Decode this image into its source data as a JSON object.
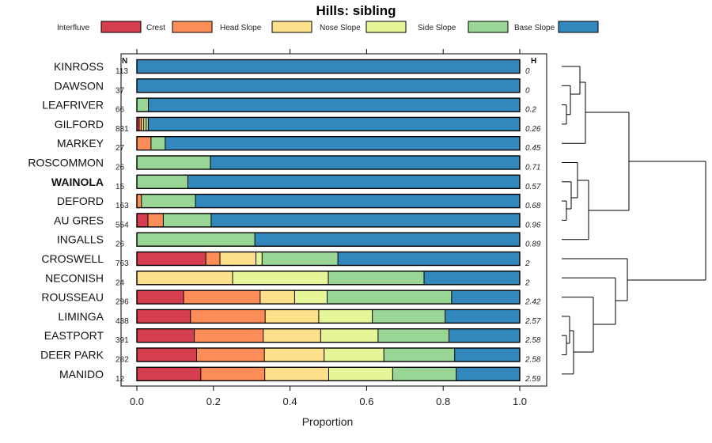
{
  "chart_data": {
    "type": "stacked-horizontal-bar",
    "title": "Hills: sibling",
    "xlabel": "Proportion",
    "xlim": [
      0,
      1
    ],
    "xticks": [
      "0.0",
      "0.2",
      "0.4",
      "0.6",
      "0.8",
      "1.0"
    ],
    "n_header": "N",
    "h_header": "H",
    "legend": [
      {
        "name": "Interfluve",
        "color": "#D53E4F"
      },
      {
        "name": "Crest",
        "color": "#FC8D59"
      },
      {
        "name": "Head Slope",
        "color": "#FEE08B"
      },
      {
        "name": "Nose Slope",
        "color": "#E6F598"
      },
      {
        "name": "Side Slope",
        "color": "#99D594"
      },
      {
        "name": "Base Slope",
        "color": "#3288BD"
      }
    ],
    "rows": [
      {
        "label": "KINROSS",
        "n": "113",
        "h": "0",
        "bold": false,
        "values": [
          0,
          0,
          0,
          0,
          0,
          1.0
        ]
      },
      {
        "label": "DAWSON",
        "n": "37",
        "h": "0",
        "bold": false,
        "values": [
          0,
          0,
          0,
          0,
          0,
          1.0
        ]
      },
      {
        "label": "LEAFRIVER",
        "n": "66",
        "h": "0.2",
        "bold": false,
        "values": [
          0,
          0,
          0,
          0,
          0.03,
          0.97
        ]
      },
      {
        "label": "GILFORD",
        "n": "831",
        "h": "0.26",
        "bold": false,
        "values": [
          0.006,
          0.006,
          0.006,
          0.006,
          0.006,
          0.97
        ]
      },
      {
        "label": "MARKEY",
        "n": "27",
        "h": "0.45",
        "bold": false,
        "values": [
          0,
          0.037,
          0,
          0,
          0.037,
          0.926
        ]
      },
      {
        "label": "ROSCOMMON",
        "n": "26",
        "h": "0.71",
        "bold": false,
        "values": [
          0,
          0,
          0,
          0,
          0.192,
          0.808
        ]
      },
      {
        "label": "WAINOLA",
        "n": "15",
        "h": "0.57",
        "bold": true,
        "values": [
          0,
          0,
          0,
          0,
          0.133,
          0.867
        ]
      },
      {
        "label": "DEFORD",
        "n": "163",
        "h": "0.68",
        "bold": false,
        "values": [
          0,
          0.012,
          0,
          0,
          0.141,
          0.847
        ]
      },
      {
        "label": "AU GRES",
        "n": "554",
        "h": "0.96",
        "bold": false,
        "values": [
          0.029,
          0.04,
          0,
          0,
          0.125,
          0.806
        ]
      },
      {
        "label": "INGALLS",
        "n": "26",
        "h": "0.89",
        "bold": false,
        "values": [
          0,
          0,
          0,
          0,
          0.308,
          0.692
        ]
      },
      {
        "label": "CROSWELL",
        "n": "763",
        "h": "2",
        "bold": false,
        "values": [
          0.18,
          0.037,
          0.094,
          0.016,
          0.198,
          0.475
        ]
      },
      {
        "label": "NECONISH",
        "n": "24",
        "h": "2",
        "bold": false,
        "values": [
          0,
          0,
          0.25,
          0.25,
          0.25,
          0.25
        ]
      },
      {
        "label": "ROUSSEAU",
        "n": "296",
        "h": "2.42",
        "bold": false,
        "values": [
          0.122,
          0.2,
          0.09,
          0.085,
          0.325,
          0.178
        ]
      },
      {
        "label": "LIMINGA",
        "n": "438",
        "h": "2.57",
        "bold": false,
        "values": [
          0.14,
          0.195,
          0.14,
          0.14,
          0.19,
          0.195
        ]
      },
      {
        "label": "EASTPORT",
        "n": "391",
        "h": "2.58",
        "bold": false,
        "values": [
          0.15,
          0.18,
          0.15,
          0.15,
          0.185,
          0.185
        ]
      },
      {
        "label": "DEER PARK",
        "n": "282",
        "h": "2.58",
        "bold": false,
        "values": [
          0.156,
          0.177,
          0.156,
          0.156,
          0.185,
          0.17
        ]
      },
      {
        "label": "MANIDO",
        "n": "12",
        "h": "2.59",
        "bold": false,
        "values": [
          0.167,
          0.167,
          0.167,
          0.167,
          0.166,
          0.166
        ]
      }
    ]
  }
}
